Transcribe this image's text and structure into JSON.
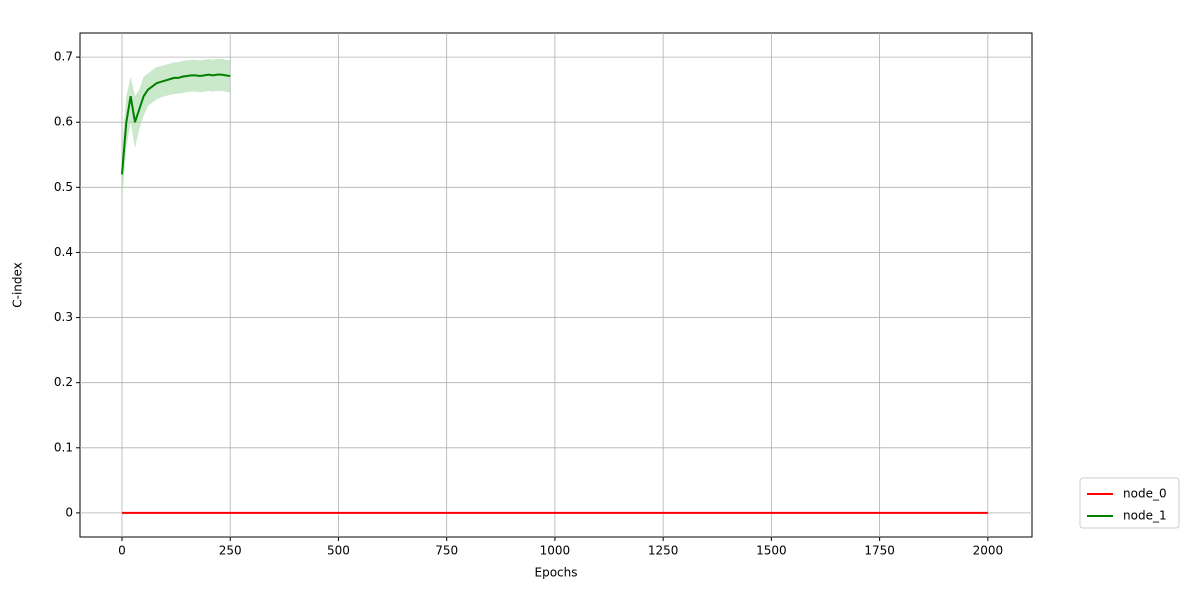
{
  "chart_data": {
    "type": "line",
    "x_label": "Epochs",
    "y_label": "C-index",
    "xlim": [
      -97,
      2102
    ],
    "xticks": [
      0,
      250,
      500,
      750,
      1000,
      1250,
      1500,
      1750,
      2000
    ],
    "ylim": [
      -0.037,
      0.737
    ],
    "yticks": [
      0.0,
      0.1,
      0.2,
      0.3,
      0.4,
      0.5,
      0.6,
      0.7
    ],
    "grid": true,
    "legend": "outside right bottom",
    "series": [
      {
        "name": "node_0",
        "color": "#ff0000",
        "x": [
          0,
          2000
        ],
        "values": [
          0.0,
          0.0
        ]
      },
      {
        "name": "node_1",
        "color": "#008000",
        "band_color": "#a6d8a6",
        "x": [
          0,
          10,
          20,
          30,
          40,
          50,
          60,
          70,
          80,
          90,
          100,
          110,
          120,
          130,
          140,
          150,
          160,
          170,
          180,
          190,
          200,
          210,
          220,
          230,
          240,
          250
        ],
        "values": [
          0.52,
          0.6,
          0.64,
          0.6,
          0.62,
          0.64,
          0.65,
          0.655,
          0.66,
          0.662,
          0.664,
          0.666,
          0.668,
          0.668,
          0.67,
          0.671,
          0.672,
          0.672,
          0.671,
          0.672,
          0.673,
          0.672,
          0.673,
          0.673,
          0.672,
          0.671
        ],
        "lower": [
          0.48,
          0.56,
          0.6,
          0.56,
          0.59,
          0.61,
          0.625,
          0.63,
          0.635,
          0.638,
          0.64,
          0.642,
          0.643,
          0.644,
          0.645,
          0.646,
          0.647,
          0.647,
          0.646,
          0.647,
          0.648,
          0.647,
          0.648,
          0.648,
          0.647,
          0.645
        ],
        "upper": [
          0.56,
          0.64,
          0.67,
          0.64,
          0.65,
          0.67,
          0.675,
          0.68,
          0.685,
          0.686,
          0.688,
          0.69,
          0.692,
          0.692,
          0.694,
          0.695,
          0.696,
          0.696,
          0.695,
          0.696,
          0.697,
          0.696,
          0.697,
          0.697,
          0.696,
          0.695
        ]
      }
    ]
  }
}
